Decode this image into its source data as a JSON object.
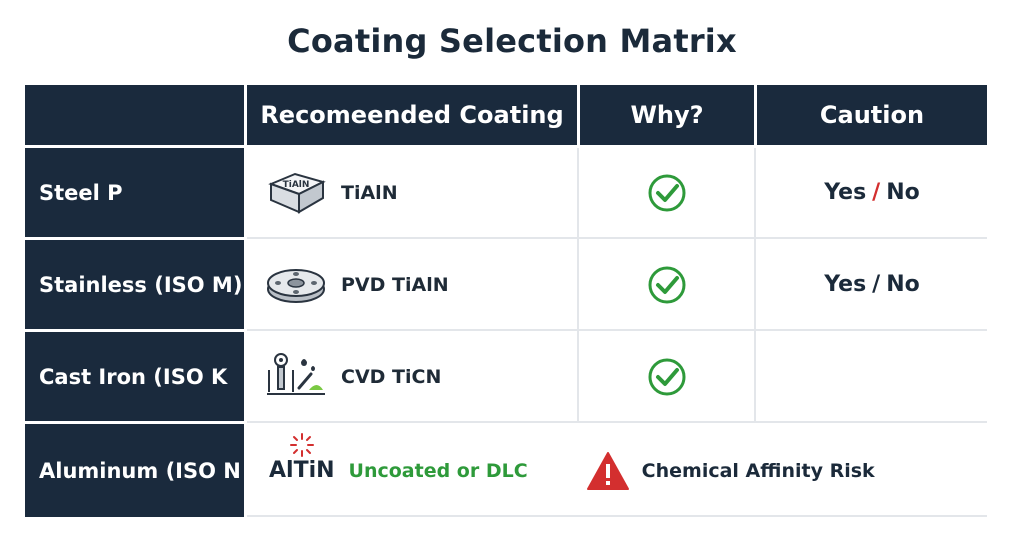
{
  "title": "Coating Selection Matrix",
  "headers": [
    "",
    "Recomeended Coating",
    "Why?",
    "Caution"
  ],
  "rows": [
    {
      "material": "Steel P",
      "coating": "TiAlN",
      "icon_text": "TiAlN",
      "icon": "insert-block-icon",
      "check": true,
      "caution": {
        "yes": "Yes",
        "slash": "/",
        "no": "No"
      }
    },
    {
      "material": "Stainless (ISO M)",
      "coating": "PVD TiAlN",
      "icon": "flange-disc-icon",
      "check": true,
      "caution": {
        "yes": "Yes",
        "slash": "/",
        "no": "No"
      }
    },
    {
      "material": "Cast Iron (ISO K",
      "coating": "CVD TiCN",
      "icon": "lab-tools-icon",
      "check": true
    },
    {
      "material": "Aluminum (ISO N",
      "altin": "AlTiN",
      "coating": "Uncoated or DLC",
      "warning": "Chemical Affinity Risk"
    }
  ],
  "colors": {
    "header_bg": "#1a2a3d",
    "check_green": "#2e9a3a",
    "warning_red": "#d32f2f",
    "slash_red": "#d32f2f"
  }
}
